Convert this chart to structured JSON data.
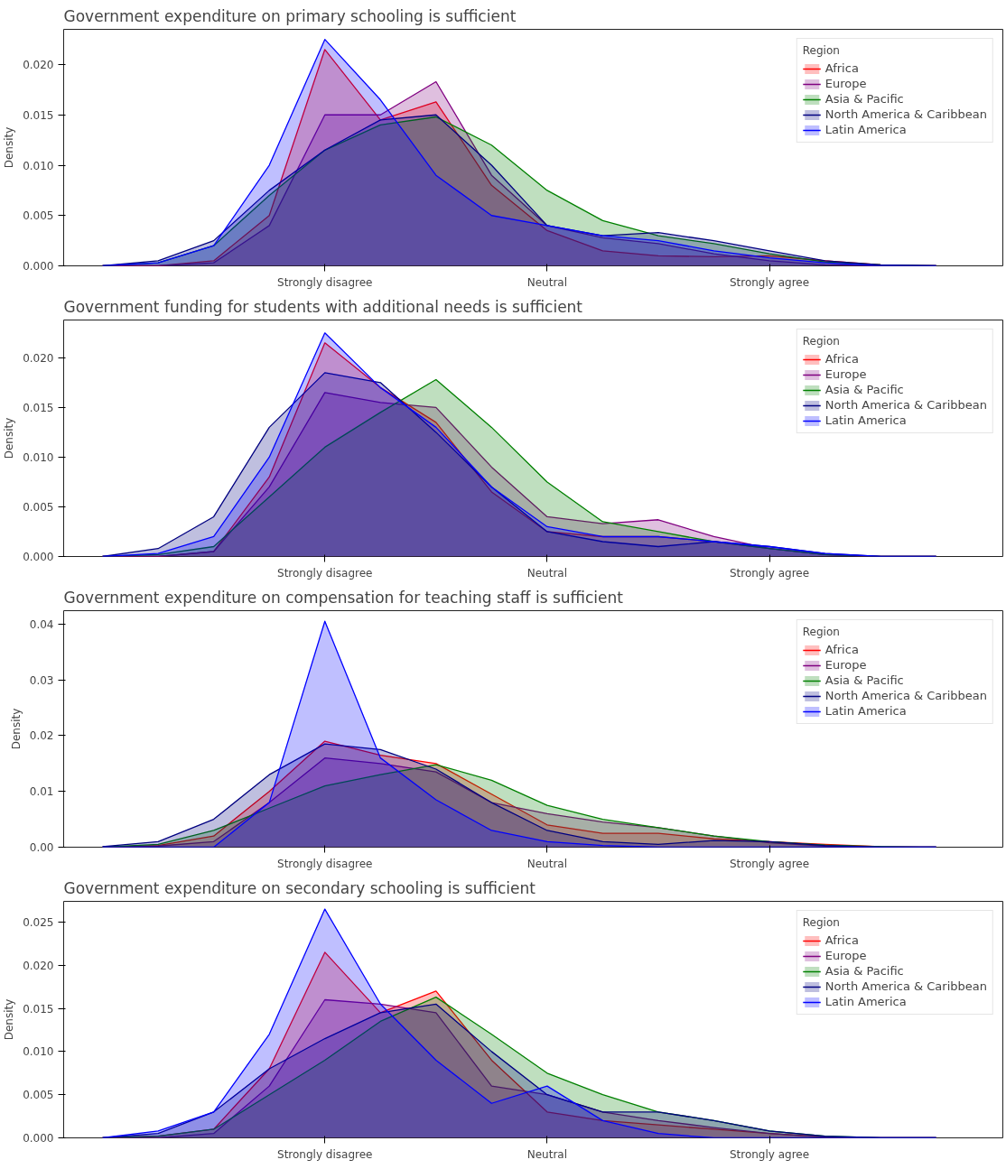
{
  "chart_data": [
    {
      "type": "area",
      "title": "Government expenditure on primary schooling is sufficient",
      "ylabel": "Density",
      "legend_title": "Region",
      "legend": "top right",
      "grid": false,
      "categories": [
        null,
        null,
        null,
        null,
        "Strongly disagree",
        null,
        null,
        null,
        "Neutral",
        null,
        null,
        null,
        "Strongly agree",
        null,
        null,
        null
      ],
      "ylim": [
        0,
        0.0235
      ],
      "yticks": [
        {
          "value": 0,
          "label": "0.000"
        },
        {
          "value": 0.005,
          "label": "0.005"
        },
        {
          "value": 0.01,
          "label": "0.010"
        },
        {
          "value": 0.015,
          "label": "0.015"
        },
        {
          "value": 0.02,
          "label": "0.020"
        }
      ],
      "series": [
        {
          "name": "Africa",
          "color": "#ff0000",
          "values": [
            0,
            0,
            0.0005,
            0.005,
            0.0215,
            0.0145,
            0.0163,
            0.008,
            0.0035,
            0.0015,
            0.001,
            0.0009,
            0.001,
            0.0005,
            0.0001,
            0
          ]
        },
        {
          "name": "Europe",
          "color": "#800080",
          "values": [
            0,
            0,
            0.0003,
            0.004,
            0.015,
            0.015,
            0.0183,
            0.009,
            0.004,
            0.0028,
            0.0022,
            0.0012,
            0.0005,
            0.0001,
            0,
            0
          ]
        },
        {
          "name": "Asia & Pacific",
          "color": "#008000",
          "values": [
            0,
            0.0003,
            0.002,
            0.007,
            0.0115,
            0.014,
            0.0148,
            0.012,
            0.0075,
            0.0045,
            0.003,
            0.0022,
            0.0012,
            0.0004,
            0.0001,
            0
          ]
        },
        {
          "name": "North America & Caribbean",
          "color": "#000080",
          "values": [
            0,
            0.0005,
            0.0025,
            0.0075,
            0.0115,
            0.0145,
            0.015,
            0.01,
            0.004,
            0.003,
            0.0033,
            0.0025,
            0.0015,
            0.0005,
            0.0001,
            0
          ]
        },
        {
          "name": "Latin America",
          "color": "#0000ff",
          "values": [
            0,
            0.0003,
            0.002,
            0.01,
            0.0225,
            0.0165,
            0.009,
            0.005,
            0.004,
            0.003,
            0.0025,
            0.0015,
            0.0008,
            0.0003,
            0,
            0
          ]
        }
      ]
    },
    {
      "type": "area",
      "title": "Government funding for students with additional needs is sufficient",
      "ylabel": "Density",
      "legend_title": "Region",
      "legend": "top right",
      "grid": false,
      "categories": [
        null,
        null,
        null,
        null,
        "Strongly disagree",
        null,
        null,
        null,
        "Neutral",
        null,
        null,
        null,
        "Strongly agree",
        null,
        null,
        null
      ],
      "ylim": [
        0,
        0.0238
      ],
      "yticks": [
        {
          "value": 0,
          "label": "0.000"
        },
        {
          "value": 0.005,
          "label": "0.005"
        },
        {
          "value": 0.01,
          "label": "0.010"
        },
        {
          "value": 0.015,
          "label": "0.015"
        },
        {
          "value": 0.02,
          "label": "0.020"
        }
      ],
      "series": [
        {
          "name": "Africa",
          "color": "#ff0000",
          "values": [
            0,
            0,
            0.0005,
            0.008,
            0.0215,
            0.017,
            0.0135,
            0.0065,
            0.0025,
            0.002,
            0.002,
            0.0015,
            0.0008,
            0.0002,
            0,
            0
          ]
        },
        {
          "name": "Europe",
          "color": "#800080",
          "values": [
            0,
            0,
            0.0005,
            0.007,
            0.0165,
            0.0155,
            0.015,
            0.009,
            0.004,
            0.0033,
            0.0037,
            0.002,
            0.0008,
            0.0002,
            0,
            0
          ]
        },
        {
          "name": "Asia & Pacific",
          "color": "#008000",
          "values": [
            0,
            0.0002,
            0.001,
            0.006,
            0.011,
            0.0145,
            0.0178,
            0.013,
            0.0075,
            0.0035,
            0.0025,
            0.0015,
            0.0008,
            0.0002,
            0,
            0
          ]
        },
        {
          "name": "North America & Caribbean",
          "color": "#000080",
          "values": [
            0,
            0.0008,
            0.004,
            0.013,
            0.0185,
            0.0175,
            0.0125,
            0.007,
            0.0025,
            0.0015,
            0.001,
            0.0015,
            0.001,
            0.0003,
            0,
            0
          ]
        },
        {
          "name": "Latin America",
          "color": "#0000ff",
          "values": [
            0,
            0.0003,
            0.002,
            0.01,
            0.0225,
            0.017,
            0.013,
            0.007,
            0.003,
            0.002,
            0.002,
            0.0015,
            0.001,
            0.0003,
            0,
            0
          ]
        }
      ]
    },
    {
      "type": "area",
      "title": "Government expenditure on compensation for teaching staff is sufficient",
      "ylabel": "Density",
      "legend_title": "Region",
      "legend": "top right",
      "grid": false,
      "categories": [
        null,
        null,
        null,
        null,
        "Strongly disagree",
        null,
        null,
        null,
        "Neutral",
        null,
        null,
        null,
        "Strongly agree",
        null,
        null,
        null
      ],
      "ylim": [
        0,
        0.0424
      ],
      "yticks": [
        {
          "value": 0,
          "label": "0.00"
        },
        {
          "value": 0.01,
          "label": "0.01"
        },
        {
          "value": 0.02,
          "label": "0.02"
        },
        {
          "value": 0.03,
          "label": "0.03"
        },
        {
          "value": 0.04,
          "label": "0.04"
        }
      ],
      "series": [
        {
          "name": "Africa",
          "color": "#ff0000",
          "values": [
            0,
            0.0003,
            0.002,
            0.01,
            0.019,
            0.0165,
            0.015,
            0.0095,
            0.004,
            0.0025,
            0.0025,
            0.0015,
            0.001,
            0.0005,
            0.0001,
            0
          ]
        },
        {
          "name": "Europe",
          "color": "#800080",
          "values": [
            0,
            0.0002,
            0.001,
            0.008,
            0.016,
            0.015,
            0.0135,
            0.008,
            0.006,
            0.0045,
            0.0035,
            0.002,
            0.0008,
            0.0002,
            0,
            0
          ]
        },
        {
          "name": "Asia & Pacific",
          "color": "#008000",
          "values": [
            0,
            0.0005,
            0.003,
            0.007,
            0.011,
            0.013,
            0.0148,
            0.012,
            0.0075,
            0.005,
            0.0035,
            0.002,
            0.001,
            0.0004,
            0.0001,
            0
          ]
        },
        {
          "name": "North America & Caribbean",
          "color": "#000080",
          "values": [
            0.0001,
            0.001,
            0.005,
            0.013,
            0.0185,
            0.0175,
            0.014,
            0.008,
            0.003,
            0.001,
            0.0005,
            0.0012,
            0.001,
            0.0003,
            0,
            0
          ]
        },
        {
          "name": "Latin America",
          "color": "#0000ff",
          "values": [
            0,
            0,
            0,
            0.008,
            0.0405,
            0.016,
            0.0085,
            0.003,
            0.001,
            0.0003,
            0,
            0,
            0,
            0,
            0,
            0
          ]
        }
      ]
    },
    {
      "type": "area",
      "title": "Government expenditure on secondary schooling is sufficient",
      "ylabel": "Density",
      "legend_title": "Region",
      "legend": "top right",
      "grid": false,
      "categories": [
        null,
        null,
        null,
        null,
        "Strongly disagree",
        null,
        null,
        null,
        "Neutral",
        null,
        null,
        null,
        "Strongly agree",
        null,
        null,
        null
      ],
      "ylim": [
        0,
        0.0274
      ],
      "yticks": [
        {
          "value": 0,
          "label": "0.000"
        },
        {
          "value": 0.005,
          "label": "0.005"
        },
        {
          "value": 0.01,
          "label": "0.010"
        },
        {
          "value": 0.015,
          "label": "0.015"
        },
        {
          "value": 0.02,
          "label": "0.020"
        },
        {
          "value": 0.025,
          "label": "0.025"
        }
      ],
      "series": [
        {
          "name": "Africa",
          "color": "#ff0000",
          "values": [
            0,
            0.0002,
            0.001,
            0.008,
            0.0215,
            0.0145,
            0.017,
            0.009,
            0.003,
            0.002,
            0.0015,
            0.001,
            0.0005,
            0.0001,
            0,
            0
          ]
        },
        {
          "name": "Europe",
          "color": "#800080",
          "values": [
            0,
            0,
            0.0005,
            0.006,
            0.016,
            0.0155,
            0.0145,
            0.006,
            0.005,
            0.003,
            0.002,
            0.0012,
            0.0005,
            0.0001,
            0,
            0
          ]
        },
        {
          "name": "Asia & Pacific",
          "color": "#008000",
          "values": [
            0,
            0.0002,
            0.001,
            0.005,
            0.009,
            0.0135,
            0.0163,
            0.012,
            0.0075,
            0.005,
            0.003,
            0.002,
            0.0008,
            0.0002,
            0,
            0
          ]
        },
        {
          "name": "North America & Caribbean",
          "color": "#000080",
          "values": [
            0,
            0.0005,
            0.003,
            0.008,
            0.0115,
            0.0145,
            0.0155,
            0.01,
            0.005,
            0.003,
            0.003,
            0.002,
            0.0008,
            0.0002,
            0,
            0
          ]
        },
        {
          "name": "Latin America",
          "color": "#0000ff",
          "values": [
            0,
            0.0008,
            0.003,
            0.012,
            0.0265,
            0.0155,
            0.009,
            0.004,
            0.006,
            0.002,
            0.0005,
            0,
            0,
            0,
            0,
            0
          ]
        }
      ]
    }
  ]
}
